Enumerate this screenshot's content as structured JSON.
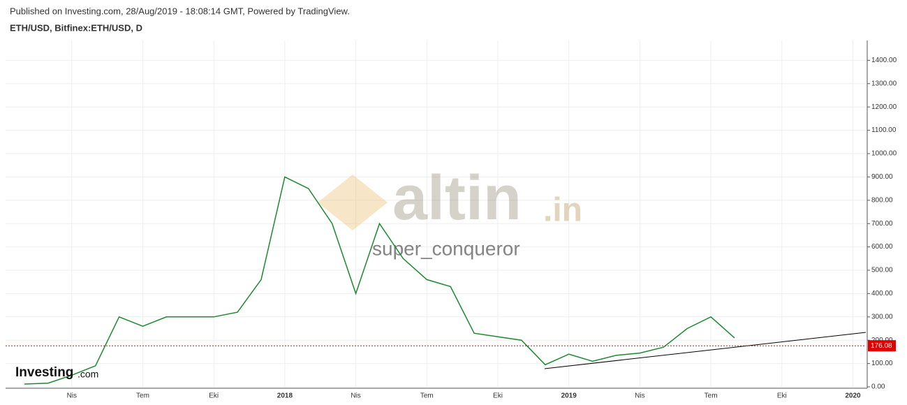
{
  "chart_data": {
    "type": "line",
    "subtitle": "Published on Investing.com, 28/Aug/2019 - 18:08:14 GMT, Powered by TradingView.",
    "title": "ETH/USD, Bitfinex:ETH/USD, D",
    "categories": [
      null,
      null,
      "Nis",
      null,
      null,
      "Tem",
      null,
      null,
      "Eki",
      null,
      null,
      "2018",
      null,
      null,
      "Nis",
      null,
      null,
      "Tem",
      null,
      null,
      "Eki",
      null,
      null,
      "2019",
      null,
      null,
      "Nis",
      null,
      null,
      "Tem",
      null,
      null,
      "Eki",
      null,
      null,
      "2020"
    ],
    "series": [
      {
        "name": "ETH/USD",
        "color": "#1b8a2f",
        "values": [
          12,
          16,
          50,
          90,
          300,
          260,
          300,
          300,
          300,
          320,
          460,
          900,
          850,
          700,
          400,
          700,
          550,
          460,
          430,
          230,
          215,
          200,
          95,
          140,
          110,
          135,
          145,
          170,
          250,
          300,
          210,
          null,
          null,
          null,
          null,
          null
        ]
      }
    ],
    "ylim": [
      0,
      1485
    ],
    "yticks": [
      {
        "value": 0,
        "label": "0.00"
      },
      {
        "value": 100,
        "label": "100.00"
      },
      {
        "value": 200,
        "label": "200.00"
      },
      {
        "value": 300,
        "label": "300.00"
      },
      {
        "value": 400,
        "label": "400.00"
      },
      {
        "value": 500,
        "label": "500.00"
      },
      {
        "value": 600,
        "label": "600.00"
      },
      {
        "value": 700,
        "label": "700.00"
      },
      {
        "value": 800,
        "label": "800.00"
      },
      {
        "value": 900,
        "label": "900.00"
      },
      {
        "value": 1000,
        "label": "1000.00"
      },
      {
        "value": 1100,
        "label": "1100.00"
      },
      {
        "value": 1200,
        "label": "1200.00"
      },
      {
        "value": 1300,
        "label": "1300.00"
      },
      {
        "value": 1400,
        "label": "1400.00"
      }
    ],
    "last_price": {
      "value": 176.08,
      "label": "176.08",
      "color": "#e00000"
    },
    "grid": true,
    "watermarks": {
      "brand": "altin",
      "brand_suffix": ".in",
      "author": "super_conqueror",
      "logo": "Investing",
      "logo_suffix": ".com"
    }
  }
}
